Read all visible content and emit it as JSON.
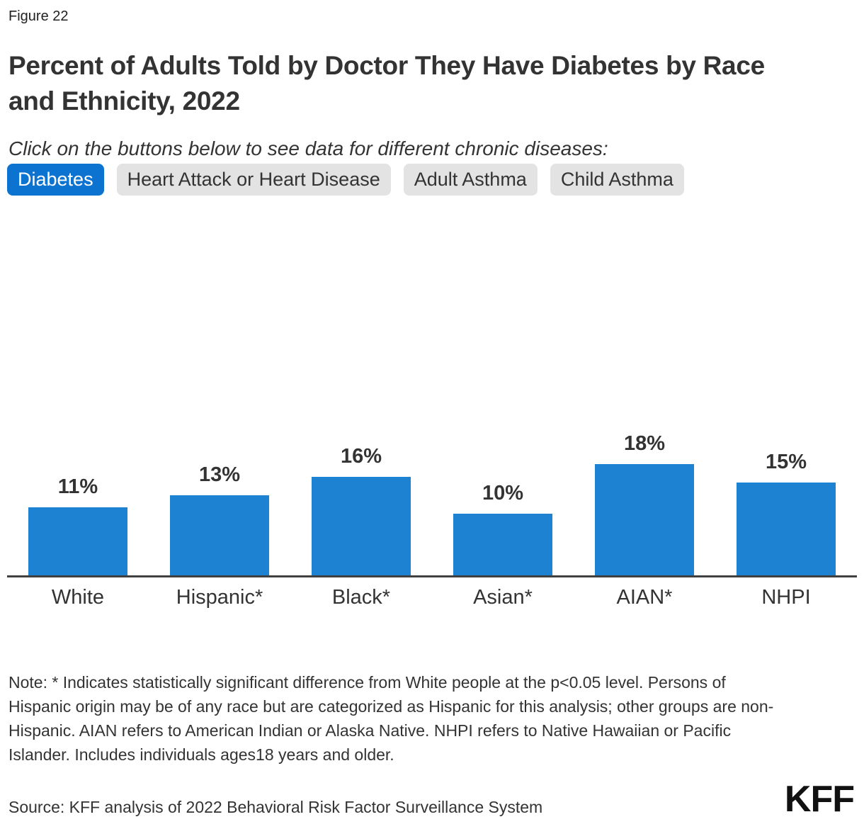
{
  "figure_label": "Figure 22",
  "title": {
    "line1": "Percent of Adults Told by Doctor They Have Diabetes by Race",
    "line2": "and Ethnicity, 2022"
  },
  "subtitle": "Click on the buttons below to see data for different chronic diseases:",
  "buttons": [
    {
      "label": "Diabetes",
      "active": true
    },
    {
      "label": "Heart Attack or Heart Disease",
      "active": false
    },
    {
      "label": "Adult Asthma",
      "active": false
    },
    {
      "label": "Child Asthma",
      "active": false
    }
  ],
  "chart_data": {
    "type": "bar",
    "title": "Percent of Adults Told by Doctor They Have Diabetes by Race and Ethnicity, 2022",
    "categories": [
      "White",
      "Hispanic*",
      "Black*",
      "Asian*",
      "AIAN*",
      "NHPI"
    ],
    "values": [
      11,
      13,
      16,
      10,
      18,
      15
    ],
    "value_labels": [
      "11%",
      "13%",
      "16%",
      "10%",
      "18%",
      "15%"
    ],
    "xlabel": "",
    "ylabel": "",
    "ylim": [
      0,
      20
    ],
    "grid": false,
    "legend": "none",
    "bar_color": "#1e82d2",
    "axis_color": "#404040"
  },
  "colors": {
    "active_button_bg": "#0d73d1",
    "active_button_text": "#ffffff",
    "inactive_button_bg": "#e3e3e3",
    "inactive_button_text": "#333333"
  },
  "note": "Note: * Indicates statistically significant difference from White people at the p<0.05 level. Persons of Hispanic origin may be of any race but are categorized as Hispanic for this analysis; other groups are non-Hispanic. AIAN refers to American Indian or Alaska Native. NHPI refers to Native Hawaiian or Pacific Islander. Includes individuals ages18 years and older.",
  "source": "Source: KFF analysis of 2022 Behavioral Risk Factor Surveillance System",
  "logo": "KFF"
}
